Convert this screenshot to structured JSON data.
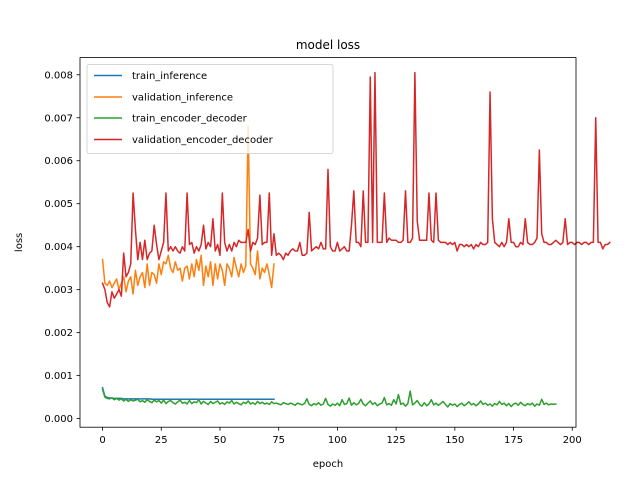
{
  "chart_data": {
    "type": "line",
    "title": "model loss",
    "xlabel": "epoch",
    "ylabel": "loss",
    "xlim": [
      -9.6,
      201.6
    ],
    "ylim": [
      -0.0002,
      0.0084
    ],
    "x_ticks": [
      0,
      25,
      50,
      75,
      100,
      125,
      150,
      175,
      200
    ],
    "y_ticks": [
      0.0,
      0.001,
      0.002,
      0.003,
      0.004,
      0.005,
      0.006,
      0.007,
      0.008
    ],
    "x_tick_labels": [
      "0",
      "25",
      "50",
      "75",
      "100",
      "125",
      "150",
      "175",
      "200"
    ],
    "y_tick_labels": [
      "0.000",
      "0.001",
      "0.002",
      "0.003",
      "0.004",
      "0.005",
      "0.006",
      "0.007",
      "0.008"
    ],
    "grid": false,
    "legend_position": "top-left",
    "series": [
      {
        "name": "train_inference",
        "color": "#1f77b4",
        "x_start": 0,
        "values": [
          0.00072,
          0.00052,
          0.00049,
          0.00048,
          0.00048,
          0.00047,
          0.00047,
          0.00047,
          0.00047,
          0.00046,
          0.00046,
          0.00046,
          0.00046,
          0.00046,
          0.00046,
          0.00046,
          0.00046,
          0.00046,
          0.00046,
          0.00046,
          0.00046,
          0.00045,
          0.00045,
          0.00045,
          0.00045,
          0.00045,
          0.00045,
          0.00045,
          0.00045,
          0.00045,
          0.00045,
          0.00045,
          0.00045,
          0.00045,
          0.00045,
          0.00045,
          0.00045,
          0.00045,
          0.00045,
          0.00045,
          0.00045,
          0.00045,
          0.00045,
          0.00045,
          0.00045,
          0.00045,
          0.00045,
          0.00045,
          0.00045,
          0.00045,
          0.00045,
          0.00045,
          0.00045,
          0.00045,
          0.00045,
          0.00045,
          0.00045,
          0.00045,
          0.00045,
          0.00045,
          0.00045,
          0.00045,
          0.00045,
          0.00045,
          0.00045,
          0.00045,
          0.00045,
          0.00045,
          0.00045,
          0.00045,
          0.00045,
          0.00045,
          0.00045,
          0.00045
        ]
      },
      {
        "name": "validation_inference",
        "color": "#ff7f0e",
        "x_start": 0,
        "values": [
          0.0037,
          0.00315,
          0.0031,
          0.0032,
          0.00305,
          0.00315,
          0.00325,
          0.003,
          0.00315,
          0.0033,
          0.00295,
          0.0032,
          0.0033,
          0.0029,
          0.00345,
          0.0031,
          0.0033,
          0.0034,
          0.00305,
          0.0036,
          0.0031,
          0.0034,
          0.00335,
          0.00315,
          0.0036,
          0.00335,
          0.00365,
          0.0036,
          0.0038,
          0.0035,
          0.0034,
          0.00365,
          0.00345,
          0.0035,
          0.0032,
          0.0035,
          0.00355,
          0.00325,
          0.0036,
          0.0033,
          0.0037,
          0.00345,
          0.0038,
          0.0031,
          0.00355,
          0.0033,
          0.00365,
          0.0031,
          0.0036,
          0.00325,
          0.0036,
          0.00345,
          0.0031,
          0.0036,
          0.0035,
          0.0033,
          0.00375,
          0.0035,
          0.0033,
          0.0036,
          0.0034,
          0.00355,
          0.0068,
          0.0036,
          0.0035,
          0.00335,
          0.0039,
          0.00325,
          0.0035,
          0.0034,
          0.0036,
          0.00335,
          0.00305,
          0.0036
        ]
      },
      {
        "name": "train_encoder_decoder",
        "color": "#2ca02c",
        "x_start": 0,
        "values": [
          0.00068,
          0.0005,
          0.00047,
          0.00046,
          0.00048,
          0.00044,
          0.00047,
          0.00043,
          0.00046,
          0.00041,
          0.00045,
          0.0004,
          0.00044,
          0.00041,
          0.00043,
          0.00045,
          0.00039,
          0.00042,
          0.00038,
          0.00044,
          0.0004,
          0.00037,
          0.00043,
          0.00039,
          0.00042,
          0.00036,
          0.00043,
          0.00035,
          0.0004,
          0.00042,
          0.00037,
          0.00034,
          0.00039,
          0.00043,
          0.00036,
          0.00038,
          0.00034,
          0.00042,
          0.00035,
          0.00039,
          0.00037,
          0.00044,
          0.00034,
          0.0004,
          0.00036,
          0.00033,
          0.0004,
          0.00035,
          0.00038,
          0.00041,
          0.00034,
          0.00037,
          0.00033,
          0.00039,
          0.00036,
          0.00042,
          0.00034,
          0.00038,
          0.00035,
          0.00032,
          0.00038,
          0.00035,
          0.00041,
          0.00034,
          0.00037,
          0.00033,
          0.0004,
          0.00035,
          0.00038,
          0.00034,
          0.00036,
          0.00033,
          0.00039,
          0.00035,
          0.00036,
          0.00034,
          0.00032,
          0.00037,
          0.00035,
          0.00033,
          0.00036,
          0.00034,
          0.00031,
          0.00036,
          0.00034,
          0.00032,
          0.00035,
          0.00046,
          0.00033,
          0.0003,
          0.00035,
          0.00032,
          0.00037,
          0.00031,
          0.00034,
          0.00047,
          0.00033,
          0.00029,
          0.00034,
          0.00031,
          0.00036,
          0.0003,
          0.00044,
          0.00033,
          0.00035,
          0.00048,
          0.00031,
          0.00037,
          0.00032,
          0.00035,
          0.00045,
          0.00034,
          0.0003,
          0.00036,
          0.00041,
          0.00033,
          0.00037,
          0.0003,
          0.00034,
          0.00036,
          0.00049,
          0.00032,
          0.00035,
          0.00031,
          0.00044,
          0.00034,
          0.00056,
          0.00033,
          0.00036,
          0.00029,
          0.00035,
          0.00064,
          0.00032,
          0.00036,
          0.00042,
          0.00033,
          0.00029,
          0.00037,
          0.0003,
          0.00034,
          0.00044,
          0.00032,
          0.00036,
          0.00031,
          0.00035,
          0.0004,
          0.00033,
          0.00027,
          0.00035,
          0.00031,
          0.00034,
          0.00028,
          0.00033,
          0.00036,
          0.0003,
          0.00034,
          0.00039,
          0.00032,
          0.00035,
          0.0003,
          0.00034,
          0.00041,
          0.00033,
          0.00036,
          0.00031,
          0.00034,
          0.00029,
          0.00035,
          0.00032,
          0.0004,
          0.00033,
          0.00036,
          0.0003,
          0.00035,
          0.00028,
          0.00034,
          0.00036,
          0.00031,
          0.00038,
          0.00033,
          0.0003,
          0.00035,
          0.00032,
          0.00036,
          0.00029,
          0.00034,
          0.00031,
          0.00045,
          0.00033,
          0.00036,
          0.00032,
          0.00034,
          0.00033,
          0.00034
        ]
      },
      {
        "name": "validation_encoder_decoder",
        "color": "#d62728",
        "x_start": 0,
        "values": [
          0.00315,
          0.003,
          0.0027,
          0.0026,
          0.00295,
          0.0028,
          0.0029,
          0.003,
          0.00285,
          0.00385,
          0.0033,
          0.0034,
          0.0036,
          0.00525,
          0.0044,
          0.0037,
          0.0041,
          0.0037,
          0.00415,
          0.0037,
          0.00385,
          0.0039,
          0.0045,
          0.00405,
          0.0037,
          0.0039,
          0.0041,
          0.00525,
          0.0039,
          0.004,
          0.0039,
          0.004,
          0.0039,
          0.00385,
          0.004,
          0.0039,
          0.00525,
          0.00405,
          0.0041,
          0.00385,
          0.004,
          0.0039,
          0.00405,
          0.0045,
          0.00395,
          0.0041,
          0.004,
          0.00465,
          0.0039,
          0.00405,
          0.0038,
          0.00525,
          0.0041,
          0.0039,
          0.00405,
          0.0039,
          0.0041,
          0.004,
          0.00415,
          0.0041,
          0.0041,
          0.0041,
          0.0044,
          0.0039,
          0.0041,
          0.00405,
          0.0042,
          0.0052,
          0.00405,
          0.0041,
          0.0041,
          0.00525,
          0.0038,
          0.0043,
          0.0038,
          0.00385,
          0.0038,
          0.0037,
          0.00385,
          0.0038,
          0.0039,
          0.00395,
          0.0039,
          0.0039,
          0.0041,
          0.0038,
          0.0038,
          0.00385,
          0.0048,
          0.0039,
          0.00395,
          0.004,
          0.00395,
          0.0041,
          0.00395,
          0.00395,
          0.0058,
          0.004,
          0.0039,
          0.0039,
          0.0041,
          0.0039,
          0.00395,
          0.004,
          0.0039,
          0.0039,
          0.0045,
          0.0053,
          0.0041,
          0.0041,
          0.004,
          0.0053,
          0.0041,
          0.0041,
          0.00795,
          0.0041,
          0.00805,
          0.0041,
          0.0041,
          0.0041,
          0.00525,
          0.0041,
          0.0042,
          0.00415,
          0.00415,
          0.00415,
          0.0041,
          0.0041,
          0.00415,
          0.0053,
          0.0041,
          0.0041,
          0.0042,
          0.00805,
          0.0046,
          0.00415,
          0.00415,
          0.00415,
          0.00415,
          0.00525,
          0.00415,
          0.0041,
          0.00525,
          0.00415,
          0.0041,
          0.0041,
          0.0041,
          0.00405,
          0.0041,
          0.00405,
          0.0041,
          0.0039,
          0.00405,
          0.00405,
          0.004,
          0.00405,
          0.004,
          0.00405,
          0.00395,
          0.00405,
          0.004,
          0.0041,
          0.00405,
          0.00405,
          0.0041,
          0.0076,
          0.00465,
          0.0041,
          0.00405,
          0.004,
          0.0041,
          0.004,
          0.0041,
          0.00465,
          0.0041,
          0.0041,
          0.004,
          0.004,
          0.0041,
          0.00405,
          0.00465,
          0.0041,
          0.00405,
          0.00405,
          0.0041,
          0.0042,
          0.00625,
          0.0043,
          0.0041,
          0.0041,
          0.00405,
          0.00405,
          0.0041,
          0.00415,
          0.0041,
          0.00405,
          0.0041,
          0.00465,
          0.00405,
          0.0041,
          0.0041,
          0.00405,
          0.0041,
          0.0041,
          0.00405,
          0.0041,
          0.0041,
          0.00405,
          0.0041,
          0.0041,
          0.007,
          0.0041,
          0.0041,
          0.00395,
          0.00405,
          0.00405,
          0.0041
        ]
      }
    ]
  }
}
